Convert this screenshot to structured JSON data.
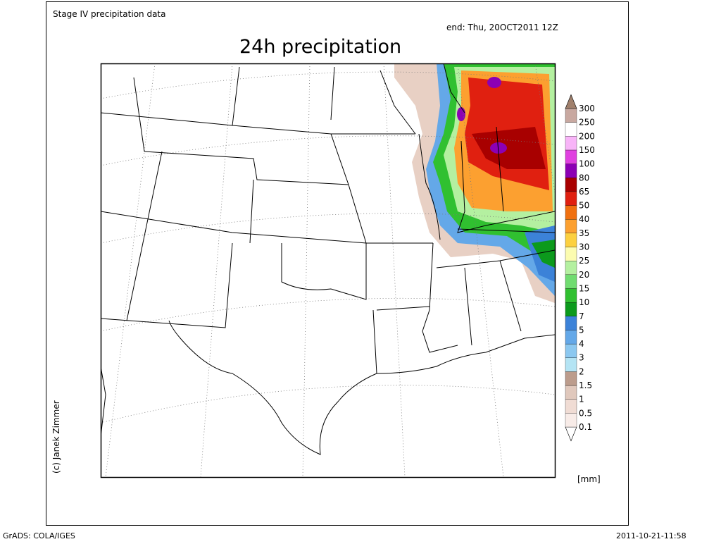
{
  "header": {
    "source": "Stage IV precipitation data",
    "valid_time": "end: Thu, 20OCT2011 12Z",
    "title": "24h precipitation",
    "credit": "(c) Janek Zimmer"
  },
  "legend": {
    "unit": "[mm]",
    "levels": [
      "0.1",
      "0.5",
      "1",
      "1.5",
      "2",
      "3",
      "4",
      "5",
      "7",
      "10",
      "15",
      "20",
      "25",
      "30",
      "35",
      "40",
      "50",
      "65",
      "80",
      "100",
      "150",
      "200",
      "250",
      "300"
    ],
    "colors": [
      "#ffffff",
      "#f8ece8",
      "#f0dcd4",
      "#e0c8bc",
      "#bc9c8c",
      "#b4e4f4",
      "#8cc8f0",
      "#64a8e8",
      "#3c82d8",
      "#0c9a1c",
      "#30c030",
      "#70dc70",
      "#b4f0a0",
      "#fcfcb0",
      "#fcd040",
      "#fca030",
      "#f07010",
      "#e02010",
      "#a80000",
      "#8c00b4",
      "#e040e0",
      "#f8b4f8",
      "#ffffff",
      "#c8a8a0",
      "#a0806c"
    ]
  },
  "footer": {
    "left": "GrADS: COLA/IGES",
    "right": "2011-10-21-11:58"
  }
}
